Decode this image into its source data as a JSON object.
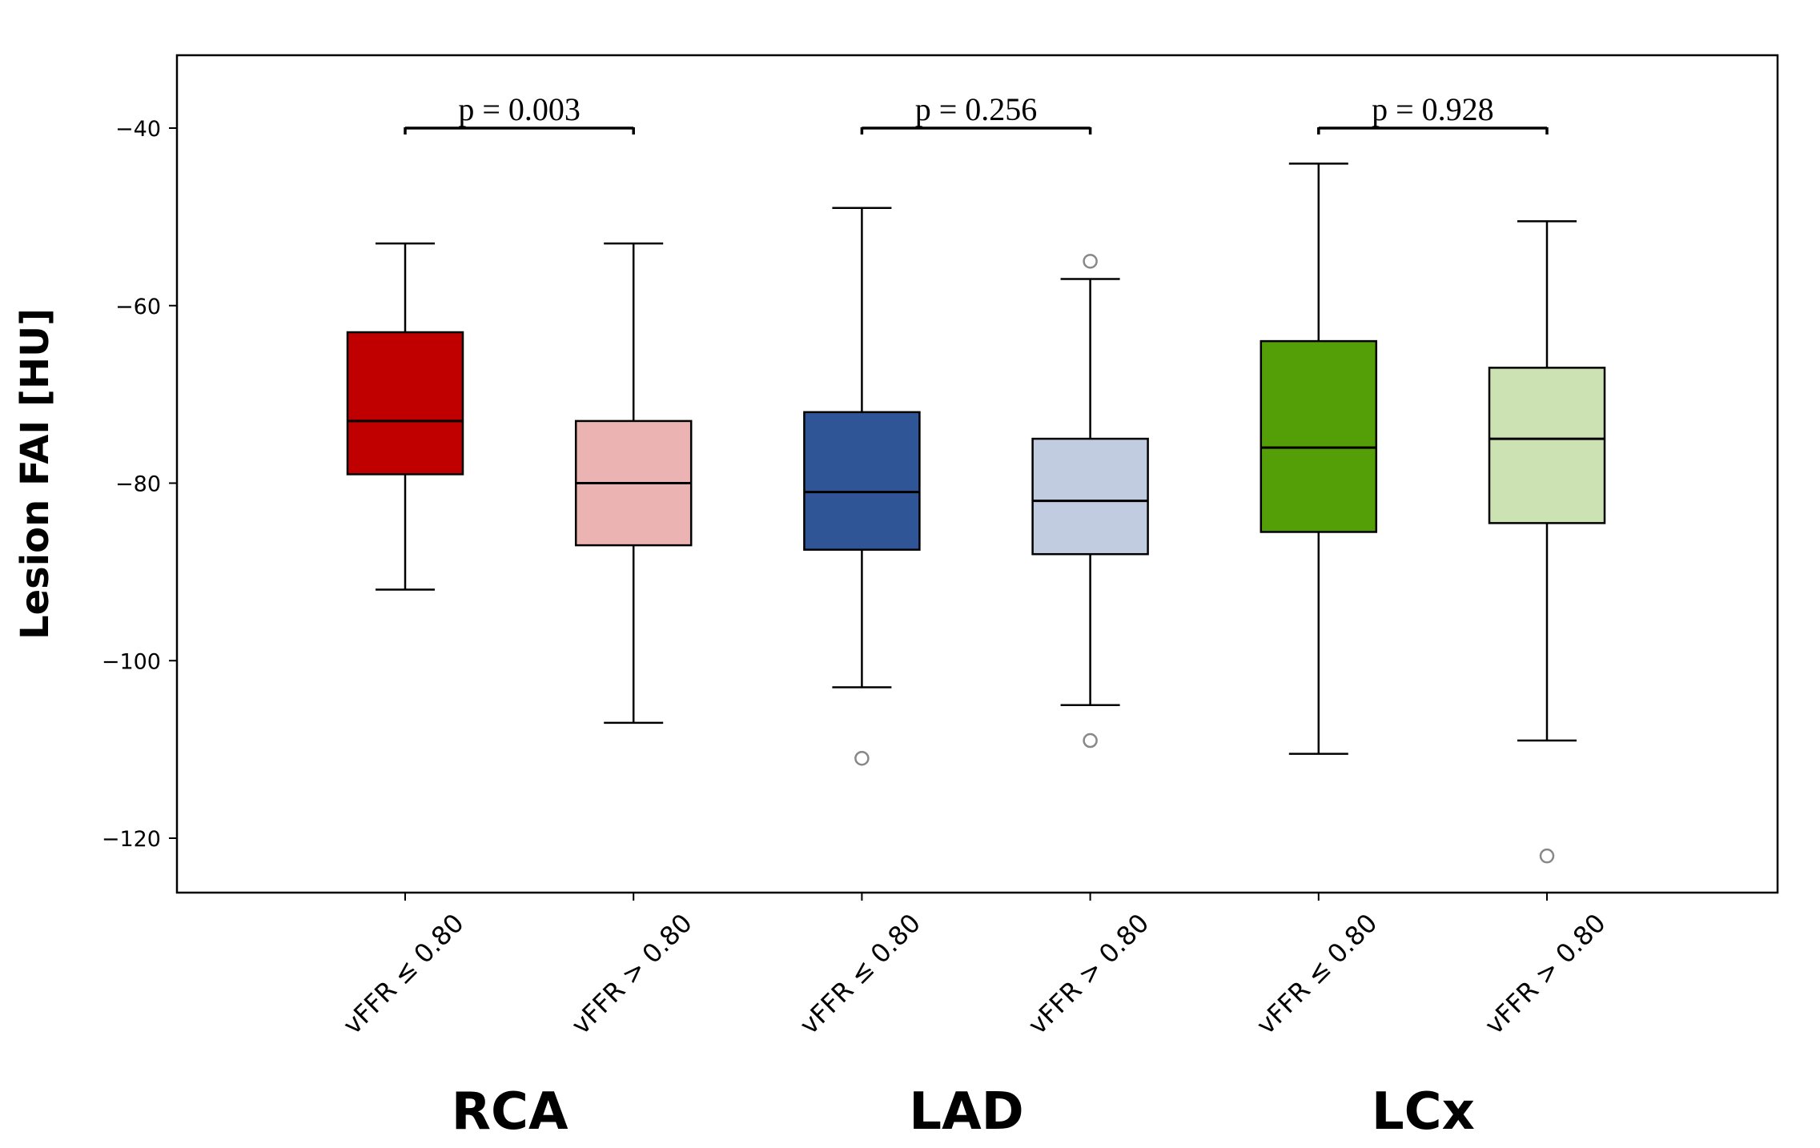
{
  "chart_data": {
    "type": "boxplot",
    "ylabel": "Lesion FAI [HU]",
    "xlabel": "",
    "ylim": [
      -126,
      -32
    ],
    "yticks": [
      -40,
      -60,
      -80,
      -100,
      -120
    ],
    "grid": false,
    "boxes": [
      {
        "label": "vFFR ≤ 0.80",
        "group": "RCA",
        "color": "#c00000",
        "whisker_low": -92,
        "q1": -79,
        "median": -73,
        "q3": -63,
        "whisker_high": -53,
        "outliers": []
      },
      {
        "label": "vFFR > 0.80",
        "group": "RCA",
        "color": "#ebb3b2",
        "whisker_low": -107,
        "q1": -87,
        "median": -80,
        "q3": -73,
        "whisker_high": -53,
        "outliers": []
      },
      {
        "label": "vFFR ≤ 0.80",
        "group": "LAD",
        "color": "#2f5597",
        "whisker_low": -103,
        "q1": -87.5,
        "median": -81,
        "q3": -72,
        "whisker_high": -49,
        "outliers": [
          -111
        ]
      },
      {
        "label": "vFFR > 0.80",
        "group": "LAD",
        "color": "#c2cce0",
        "whisker_low": -105,
        "q1": -88,
        "median": -82,
        "q3": -75,
        "whisker_high": -57,
        "outliers": [
          -55,
          -109
        ]
      },
      {
        "label": "vFFR ≤ 0.80",
        "group": "LCx",
        "color": "#549e08",
        "whisker_low": -110.5,
        "q1": -85.5,
        "median": -76,
        "q3": -64,
        "whisker_high": -44,
        "outliers": []
      },
      {
        "label": "vFFR > 0.80",
        "group": "LCx",
        "color": "#cce2b3",
        "whisker_low": -109,
        "q1": -84.5,
        "median": -75,
        "q3": -67,
        "whisker_high": -50.5,
        "outliers": [
          -122
        ]
      }
    ],
    "groups": [
      "RCA",
      "LAD",
      "LCx"
    ],
    "annotations": [
      {
        "text": "p = 0.003",
        "from": 0,
        "to": 1,
        "y": -40
      },
      {
        "text": "p = 0.256",
        "from": 2,
        "to": 3,
        "y": -40
      },
      {
        "text": "p = 0.928",
        "from": 4,
        "to": 5,
        "y": -40
      }
    ]
  }
}
